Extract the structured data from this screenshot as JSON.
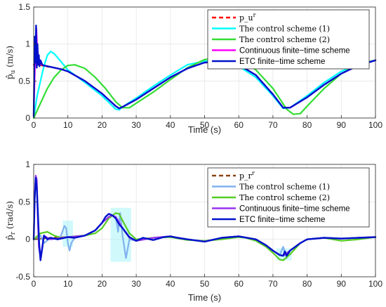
{
  "chart_data": [
    {
      "type": "line",
      "xlabel": "Time (s)",
      "ylabel": "p̂_u  (m/s)",
      "xlim": [
        0,
        100
      ],
      "ylim": [
        0,
        1.5
      ],
      "xticks": [
        "0",
        "10",
        "20",
        "30",
        "40",
        "50",
        "60",
        "70",
        "80",
        "90",
        "100"
      ],
      "yticks": [
        "0",
        "0.5",
        "1",
        "1.5"
      ],
      "grid": true,
      "legend_position": "top-right",
      "series": [
        {
          "name": "p_u^r",
          "legend_label": "p_u",
          "legend_sup": "r",
          "legend_font": "serif",
          "color": "#ff0000",
          "dash": "6,4",
          "x": [
            0,
            1,
            2,
            3,
            5,
            8,
            10,
            15,
            20,
            24,
            25,
            26,
            30,
            35,
            40,
            45,
            50,
            55,
            60,
            65,
            70,
            73,
            75,
            80,
            85,
            90,
            95,
            100
          ],
          "y": [
            0.72,
            0.74,
            0.72,
            0.7,
            0.69,
            0.66,
            0.63,
            0.5,
            0.33,
            0.16,
            0.13,
            0.15,
            0.25,
            0.4,
            0.55,
            0.67,
            0.75,
            0.76,
            0.72,
            0.58,
            0.32,
            0.14,
            0.14,
            0.28,
            0.45,
            0.6,
            0.71,
            0.78
          ]
        },
        {
          "name": "The control scheme (1)",
          "legend_label": "The control scheme (1)",
          "legend_font": "serif",
          "color": "#00ffff",
          "x": [
            0,
            1,
            2,
            3,
            4,
            5,
            6,
            8,
            10,
            15,
            20,
            24,
            25,
            26,
            30,
            35,
            40,
            45,
            50,
            55,
            60,
            65,
            70,
            73,
            75,
            80,
            85,
            90,
            95,
            100
          ],
          "y": [
            0,
            0.3,
            0.5,
            0.7,
            0.85,
            0.9,
            0.87,
            0.76,
            0.65,
            0.48,
            0.3,
            0.12,
            0.11,
            0.15,
            0.27,
            0.43,
            0.58,
            0.72,
            0.77,
            0.76,
            0.7,
            0.55,
            0.3,
            0.13,
            0.14,
            0.3,
            0.48,
            0.63,
            0.73,
            0.78
          ]
        },
        {
          "name": "The control scheme (2)",
          "legend_label": "The control scheme (2)",
          "legend_font": "serif",
          "color": "#33dd33",
          "x": [
            0,
            2,
            4,
            6,
            8,
            10,
            12,
            15,
            18,
            21,
            24,
            26,
            28,
            30,
            35,
            40,
            45,
            50,
            55,
            60,
            63,
            65,
            70,
            74,
            76,
            78,
            80,
            85,
            90,
            95,
            100
          ],
          "y": [
            0,
            0.2,
            0.4,
            0.55,
            0.65,
            0.71,
            0.72,
            0.67,
            0.55,
            0.4,
            0.22,
            0.14,
            0.14,
            0.2,
            0.35,
            0.52,
            0.68,
            0.79,
            0.82,
            0.78,
            0.72,
            0.65,
            0.4,
            0.12,
            0.05,
            0.06,
            0.16,
            0.4,
            0.6,
            0.73,
            0.78
          ]
        },
        {
          "name": "Continuous finite-time scheme",
          "legend_label": "Continuous finite−time scheme",
          "legend_font": "sans",
          "color": "#ff00ff",
          "x": [
            0,
            0.5,
            0.8,
            1.0,
            1.5,
            2,
            3,
            5,
            8,
            10,
            15,
            20,
            24,
            25,
            26,
            30,
            35,
            40,
            45,
            50,
            55,
            60,
            65,
            70,
            73,
            75,
            80,
            85,
            90,
            95,
            100
          ],
          "y": [
            0.05,
            0.9,
            1.2,
            0.95,
            0.8,
            0.73,
            0.71,
            0.69,
            0.66,
            0.63,
            0.5,
            0.33,
            0.16,
            0.13,
            0.15,
            0.25,
            0.4,
            0.55,
            0.67,
            0.75,
            0.76,
            0.72,
            0.58,
            0.32,
            0.14,
            0.14,
            0.28,
            0.45,
            0.6,
            0.71,
            0.78
          ]
        },
        {
          "name": "ETC finite-time scheme",
          "legend_label": "ETC finite−time scheme",
          "legend_font": "sans",
          "color": "#0011cc",
          "x": [
            0,
            0.3,
            0.5,
            0.7,
            0.9,
            1.1,
            1.3,
            1.5,
            1.7,
            2.0,
            2.5,
            3,
            5,
            8,
            10,
            15,
            20,
            24,
            25,
            26,
            30,
            35,
            40,
            45,
            50,
            55,
            60,
            65,
            70,
            73,
            75,
            80,
            85,
            90,
            95,
            100
          ],
          "y": [
            0.02,
            1.1,
            0.75,
            1.25,
            0.68,
            1.0,
            0.72,
            0.85,
            0.7,
            0.78,
            0.72,
            0.71,
            0.69,
            0.66,
            0.63,
            0.5,
            0.33,
            0.16,
            0.13,
            0.15,
            0.25,
            0.4,
            0.55,
            0.67,
            0.75,
            0.76,
            0.72,
            0.58,
            0.32,
            0.14,
            0.14,
            0.28,
            0.45,
            0.6,
            0.71,
            0.78
          ]
        }
      ]
    },
    {
      "type": "line",
      "xlabel": "Time (s)",
      "ylabel": "p̂_r  (rad/s)",
      "xlim": [
        0,
        100
      ],
      "ylim": [
        -0.5,
        1
      ],
      "xticks": [
        "0",
        "10",
        "20",
        "30",
        "40",
        "50",
        "60",
        "70",
        "80",
        "90",
        "100"
      ],
      "yticks": [
        "-0.5",
        "0",
        "0.5",
        "1"
      ],
      "grid": true,
      "legend_position": "top-right",
      "series": [
        {
          "name": "p_r^r",
          "legend_label": "p_r",
          "legend_sup": "r",
          "legend_font": "serif",
          "color": "#8b4513",
          "dash": "6,4",
          "x": [
            0,
            5,
            10,
            15,
            18,
            20,
            22,
            23,
            24,
            26,
            28,
            30,
            35,
            40,
            45,
            50,
            55,
            60,
            65,
            68,
            70,
            72,
            73,
            75,
            78,
            80,
            85,
            90,
            95,
            100
          ],
          "y": [
            0,
            0.02,
            0.03,
            0.05,
            0.12,
            0.22,
            0.3,
            0.32,
            0.3,
            0.15,
            0.02,
            -0.02,
            0.02,
            0.04,
            0.0,
            -0.03,
            0.02,
            0.04,
            0,
            -0.08,
            -0.15,
            -0.21,
            -0.22,
            -0.15,
            -0.05,
            0,
            0.02,
            0.01,
            0.02,
            0.03
          ]
        },
        {
          "name": "The control scheme (1)",
          "legend_label": "The control scheme (1)",
          "legend_font": "serif",
          "color": "#7fb2ee",
          "x": [
            0,
            2,
            3,
            5,
            7,
            8,
            9,
            9.5,
            10,
            10.5,
            11,
            12,
            15,
            18,
            20,
            22,
            23,
            24,
            24.7,
            25.3,
            26,
            27,
            28,
            30,
            35,
            40,
            45,
            50,
            55,
            60,
            65,
            68,
            70,
            72,
            73,
            74,
            75,
            78,
            80,
            85,
            90,
            95,
            100
          ],
          "y": [
            0,
            0.05,
            -0.05,
            0.02,
            0.0,
            0.05,
            0.18,
            0.15,
            -0.05,
            -0.15,
            -0.05,
            0.02,
            0.05,
            0.12,
            0.22,
            0.3,
            0.32,
            0.3,
            0.1,
            0.35,
            0.05,
            -0.25,
            0.0,
            -0.02,
            0.02,
            0.04,
            0.0,
            -0.03,
            0.02,
            0.04,
            0,
            -0.08,
            -0.15,
            -0.21,
            -0.1,
            -0.25,
            -0.15,
            -0.05,
            0,
            0.02,
            0.01,
            0.02,
            0.03
          ]
        },
        {
          "name": "The control scheme (2)",
          "legend_label": "The control scheme (2)",
          "legend_font": "serif",
          "color": "#55cc22",
          "x": [
            0,
            2,
            4,
            6,
            8,
            10,
            12,
            15,
            18,
            20,
            22,
            24,
            25,
            26,
            28,
            30,
            35,
            40,
            45,
            50,
            55,
            60,
            62,
            65,
            68,
            70,
            72,
            73,
            75,
            78,
            80,
            85,
            90,
            95,
            100
          ],
          "y": [
            0,
            0.08,
            0.1,
            0.05,
            0.02,
            0.03,
            0.04,
            0.05,
            0.08,
            0.15,
            0.28,
            0.35,
            0.34,
            0.25,
            0.08,
            0.0,
            0.02,
            0.03,
            -0.01,
            -0.02,
            0.0,
            0.03,
            0.02,
            -0.02,
            -0.1,
            -0.18,
            -0.27,
            -0.28,
            -0.2,
            -0.05,
            0.0,
            0.02,
            -0.02,
            0.0,
            0.03
          ]
        },
        {
          "name": "Continuous finite-time scheme",
          "legend_label": "Continuous finite−time scheme",
          "legend_font": "sans",
          "color": "#9933ee",
          "x": [
            0,
            0.3,
            0.6,
            0.9,
            1.2,
            1.5,
            2,
            2.5,
            3,
            4,
            5,
            10,
            15,
            18,
            20,
            22,
            23,
            24,
            26,
            28,
            30,
            35,
            40,
            45,
            50,
            55,
            60,
            65,
            68,
            70,
            72,
            73,
            75,
            78,
            80,
            85,
            90,
            95,
            100
          ],
          "y": [
            0,
            0.6,
            0.85,
            0.8,
            0.3,
            -0.1,
            -0.25,
            -0.1,
            0.05,
            0.02,
            0.0,
            0.03,
            0.05,
            0.12,
            0.22,
            0.3,
            0.32,
            0.3,
            0.15,
            0.02,
            -0.02,
            0.02,
            0.04,
            0.0,
            -0.03,
            0.02,
            0.04,
            0,
            -0.08,
            -0.15,
            -0.21,
            -0.22,
            -0.15,
            -0.05,
            0,
            0.02,
            0.01,
            0.02,
            0.03
          ]
        },
        {
          "name": "ETC finite-time scheme",
          "legend_label": "ETC finite−time scheme",
          "legend_font": "sans",
          "color": "#0011cc",
          "x": [
            0,
            0.3,
            0.6,
            0.9,
            1.2,
            1.6,
            2.0,
            2.5,
            3,
            4,
            5,
            7,
            10,
            12,
            15,
            18,
            20,
            21,
            22,
            23,
            24,
            25,
            26,
            28,
            30,
            32,
            35,
            38,
            40,
            42,
            45,
            50,
            55,
            60,
            65,
            68,
            70,
            72,
            73,
            73.5,
            74,
            75,
            78,
            80,
            85,
            90,
            95,
            100
          ],
          "y": [
            0,
            0.55,
            0.82,
            0.7,
            0.4,
            -0.05,
            -0.28,
            -0.12,
            0.05,
            0.0,
            0.02,
            0.0,
            0.03,
            0.02,
            0.05,
            0.12,
            0.22,
            0.3,
            0.34,
            0.32,
            0.28,
            0.2,
            0.15,
            0.03,
            -0.02,
            0.02,
            -0.01,
            0.03,
            0.04,
            0.02,
            0.0,
            -0.03,
            0.02,
            0.04,
            0,
            -0.08,
            -0.15,
            -0.21,
            -0.22,
            -0.16,
            -0.22,
            -0.15,
            -0.05,
            0,
            0.02,
            0.01,
            0.02,
            0.03
          ]
        }
      ]
    }
  ]
}
